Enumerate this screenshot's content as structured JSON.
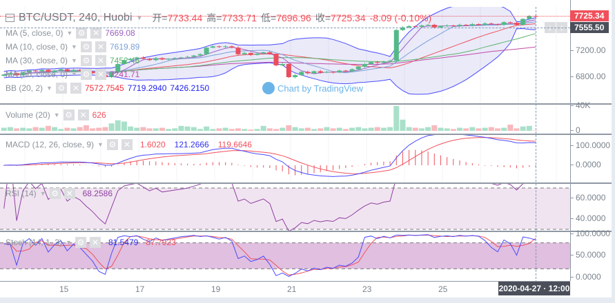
{
  "header": {
    "symbol": "BTC/USDT, 240, Huobi",
    "open_label": "开=",
    "open": "7733.44",
    "high_label": "高=",
    "high": "7733.71",
    "low_label": "低=",
    "low": "7696.96",
    "close_label": "收=",
    "close": "7725.34",
    "change": "-8.09 (-0.10%)"
  },
  "legends": {
    "ma5": {
      "label": "MA (5, close, 0)",
      "value": "7669.08"
    },
    "ma10": {
      "label": "MA (10, close, 0)",
      "value": "7619.89"
    },
    "ma30": {
      "label": "MA (30, close, 0)",
      "value": "7452.46"
    },
    "ma60": {
      "label": "MA (60, close, 0)",
      "value": "7241.71"
    },
    "bb": {
      "label": "BB (20, 2)",
      "basis": "7572.7545",
      "upper": "7719.2940",
      "lower": "7426.2150"
    },
    "volume": {
      "label": "Volume (20)",
      "value": "626"
    },
    "macd": {
      "label": "MACD (12, 26, close, 9)",
      "hist": "1.6020",
      "macd": "121.2666",
      "signal": "119.6646"
    },
    "rsi": {
      "label": "RSI (14)",
      "value": "68.2586"
    },
    "stoch": {
      "label": "Stoch (14, 1, 3)",
      "k": "81.5479",
      "d": "87.7923"
    }
  },
  "watermark": "Chart by TradingView",
  "price_axis": {
    "ticks": [
      "7200.00",
      "6800.00"
    ],
    "last_price": "7725.34",
    "crosshair_price": "7555.50"
  },
  "volume_axis": {
    "ticks": [
      "40K",
      "0"
    ]
  },
  "macd_axis": {
    "ticks": [
      "100.0000",
      "0.0000"
    ]
  },
  "rsi_axis": {
    "ticks": [
      "60.0000",
      "40.0000"
    ]
  },
  "stoch_axis": {
    "ticks": [
      "100.0000",
      "50.0000",
      "0.0000"
    ]
  },
  "time_axis": {
    "ticks": [
      "15",
      "17",
      "19",
      "21",
      "23",
      "25"
    ],
    "crosshair_time": "2020-04-27 · 12:00"
  },
  "icons": {
    "gear": "⚙",
    "close": "✕",
    "down_arrow": "↓",
    "updown_arrow": "↕"
  },
  "colors": {
    "up": "#53b987",
    "down": "#eb4d5c",
    "ma5": "#9c5fbf",
    "ma10": "#7a9fd6",
    "ma30": "#5bb26b",
    "ma60": "#c04aa8",
    "bb_band": "#4a4aff",
    "bb_basis": "#f0505b",
    "macd": "#4a4aff",
    "signal": "#f0505b",
    "rsi": "#8e3fa0"
  },
  "chart_data": {
    "type": "candlestick",
    "interval": "4h",
    "last_bar": "2020-04-27 12:00",
    "closes": [
      6840,
      6860,
      6830,
      6870,
      6900,
      6890,
      6910,
      6880,
      6900,
      6920,
      6890,
      6910,
      6900,
      6880,
      6860,
      6830,
      6800,
      6870,
      7000,
      7060,
      7080,
      7100,
      7080,
      7060,
      7090,
      7070,
      7080,
      7090,
      7100,
      7110,
      7130,
      7150,
      7250,
      7270,
      7260,
      7270,
      7250,
      7150,
      7170,
      7140,
      7160,
      7180,
      7150,
      6980,
      7000,
      6800,
      6830,
      6880,
      6860,
      6890,
      6870,
      6880,
      6870,
      6900,
      6890,
      6920,
      6960,
      7000,
      7030,
      7020,
      7040,
      7050,
      7520,
      7560,
      7580,
      7570,
      7590,
      7600,
      7560,
      7580,
      7590,
      7580,
      7600,
      7590,
      7610,
      7600,
      7620,
      7610,
      7600,
      7640,
      7630,
      7600,
      7690,
      7733.44,
      7725.34
    ],
    "volume_k": [
      5,
      6,
      4,
      5,
      4,
      6,
      5,
      8,
      6,
      3,
      5,
      4,
      6,
      9,
      4,
      5,
      6,
      12,
      17,
      15,
      7,
      5,
      6,
      4,
      4,
      5,
      3,
      4,
      8,
      7,
      6,
      3,
      7,
      3,
      4,
      5,
      3,
      4,
      3,
      2,
      3,
      8,
      4,
      3,
      5,
      9,
      6,
      4,
      5,
      3,
      4,
      6,
      4,
      5,
      3,
      5,
      6,
      4,
      5,
      6,
      5,
      6,
      40,
      18,
      6,
      5,
      4,
      6,
      9,
      5,
      4,
      3,
      5,
      4,
      6,
      4,
      5,
      6,
      4,
      5,
      10,
      4,
      7,
      8,
      0.6
    ],
    "price_ylim": [
      6600,
      7800
    ],
    "volume_ylim": [
      0,
      40000
    ],
    "rsi_bands": [
      30,
      70
    ],
    "stoch_bands": [
      20,
      80
    ]
  }
}
